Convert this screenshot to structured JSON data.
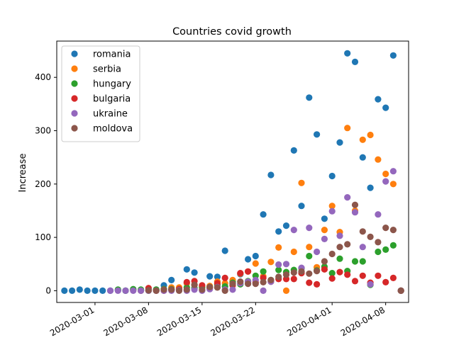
{
  "chart_data": {
    "type": "scatter",
    "title": "Countries covid growth",
    "xlabel": "",
    "ylabel": "Increase",
    "x_axis_type": "date",
    "xlim": [
      "2020-02-25",
      "2020-04-11"
    ],
    "ylim": [
      -22,
      468
    ],
    "x_ticks": [
      "2020-03-01",
      "2020-03-08",
      "2020-03-15",
      "2020-03-22",
      "2020-04-01",
      "2020-04-08"
    ],
    "y_ticks": [
      0,
      100,
      200,
      300,
      400
    ],
    "legend_position": "top-left",
    "grid": false,
    "series": [
      {
        "name": "romania",
        "color": "#1f77b4",
        "points": [
          [
            "2020-02-26",
            0
          ],
          [
            "2020-02-27",
            0
          ],
          [
            "2020-02-28",
            2
          ],
          [
            "2020-02-29",
            0
          ],
          [
            "2020-03-01",
            0
          ],
          [
            "2020-03-02",
            0
          ],
          [
            "2020-03-03",
            0
          ],
          [
            "2020-03-04",
            1
          ],
          [
            "2020-03-05",
            0
          ],
          [
            "2020-03-06",
            2
          ],
          [
            "2020-03-07",
            0
          ],
          [
            "2020-03-08",
            2
          ],
          [
            "2020-03-09",
            2
          ],
          [
            "2020-03-10",
            10
          ],
          [
            "2020-03-11",
            20
          ],
          [
            "2020-03-12",
            4
          ],
          [
            "2020-03-13",
            40
          ],
          [
            "2020-03-14",
            34
          ],
          [
            "2020-03-15",
            8
          ],
          [
            "2020-03-16",
            27
          ],
          [
            "2020-03-17",
            26
          ],
          [
            "2020-03-18",
            75
          ],
          [
            "2020-03-19",
            17
          ],
          [
            "2020-03-20",
            31
          ],
          [
            "2020-03-21",
            59
          ],
          [
            "2020-03-22",
            65
          ],
          [
            "2020-03-23",
            143
          ],
          [
            "2020-03-24",
            217
          ],
          [
            "2020-03-25",
            111
          ],
          [
            "2020-03-26",
            122
          ],
          [
            "2020-03-27",
            263
          ],
          [
            "2020-03-28",
            159
          ],
          [
            "2020-03-29",
            362
          ],
          [
            "2020-03-30",
            293
          ],
          [
            "2020-03-31",
            135
          ],
          [
            "2020-04-01",
            215
          ],
          [
            "2020-04-02",
            278
          ],
          [
            "2020-04-03",
            445
          ],
          [
            "2020-04-04",
            429
          ],
          [
            "2020-04-05",
            250
          ],
          [
            "2020-04-06",
            193
          ],
          [
            "2020-04-07",
            359
          ],
          [
            "2020-04-08",
            343
          ],
          [
            "2020-04-09",
            441
          ],
          [
            "2020-04-10",
            0
          ]
        ]
      },
      {
        "name": "serbia",
        "color": "#ff7f0e",
        "points": [
          [
            "2020-03-06",
            1
          ],
          [
            "2020-03-07",
            0
          ],
          [
            "2020-03-08",
            0
          ],
          [
            "2020-03-09",
            1
          ],
          [
            "2020-03-10",
            3
          ],
          [
            "2020-03-11",
            6
          ],
          [
            "2020-03-12",
            6
          ],
          [
            "2020-03-13",
            14
          ],
          [
            "2020-03-14",
            11
          ],
          [
            "2020-03-15",
            7
          ],
          [
            "2020-03-16",
            9
          ],
          [
            "2020-03-17",
            17
          ],
          [
            "2020-03-18",
            14
          ],
          [
            "2020-03-19",
            20
          ],
          [
            "2020-03-20",
            32
          ],
          [
            "2020-03-21",
            36
          ],
          [
            "2020-03-22",
            51
          ],
          [
            "2020-03-23",
            27
          ],
          [
            "2020-03-24",
            54
          ],
          [
            "2020-03-25",
            81
          ],
          [
            "2020-03-26",
            0
          ],
          [
            "2020-03-27",
            73
          ],
          [
            "2020-03-28",
            202
          ],
          [
            "2020-03-29",
            82
          ],
          [
            "2020-03-30",
            44
          ],
          [
            "2020-03-31",
            114
          ],
          [
            "2020-04-01",
            159
          ],
          [
            "2020-04-02",
            110
          ],
          [
            "2020-04-03",
            305
          ],
          [
            "2020-04-04",
            150
          ],
          [
            "2020-04-05",
            283
          ],
          [
            "2020-04-06",
            292
          ],
          [
            "2020-04-07",
            246
          ],
          [
            "2020-04-08",
            219
          ],
          [
            "2020-04-09",
            200
          ],
          [
            "2020-04-10",
            0
          ]
        ]
      },
      {
        "name": "hungary",
        "color": "#2ca02c",
        "points": [
          [
            "2020-03-04",
            2
          ],
          [
            "2020-03-05",
            0
          ],
          [
            "2020-03-06",
            3
          ],
          [
            "2020-03-07",
            2
          ],
          [
            "2020-03-08",
            0
          ],
          [
            "2020-03-09",
            2
          ],
          [
            "2020-03-10",
            3
          ],
          [
            "2020-03-11",
            3
          ],
          [
            "2020-03-12",
            3
          ],
          [
            "2020-03-13",
            6
          ],
          [
            "2020-03-14",
            5
          ],
          [
            "2020-03-15",
            6
          ],
          [
            "2020-03-16",
            7
          ],
          [
            "2020-03-17",
            11
          ],
          [
            "2020-03-18",
            8
          ],
          [
            "2020-03-19",
            15
          ],
          [
            "2020-03-20",
            12
          ],
          [
            "2020-03-21",
            18
          ],
          [
            "2020-03-22",
            28
          ],
          [
            "2020-03-23",
            36
          ],
          [
            "2020-03-24",
            20
          ],
          [
            "2020-03-25",
            39
          ],
          [
            "2020-03-26",
            35
          ],
          [
            "2020-03-27",
            39
          ],
          [
            "2020-03-28",
            42
          ],
          [
            "2020-03-29",
            65
          ],
          [
            "2020-03-30",
            38
          ],
          [
            "2020-03-31",
            45
          ],
          [
            "2020-04-01",
            33
          ],
          [
            "2020-04-02",
            60
          ],
          [
            "2020-04-03",
            37
          ],
          [
            "2020-04-04",
            55
          ],
          [
            "2020-04-05",
            55
          ],
          [
            "2020-04-06",
            11
          ],
          [
            "2020-04-07",
            73
          ],
          [
            "2020-04-08",
            77
          ],
          [
            "2020-04-09",
            85
          ],
          [
            "2020-04-10",
            0
          ]
        ]
      },
      {
        "name": "bulgaria",
        "color": "#d62728",
        "points": [
          [
            "2020-03-08",
            5
          ],
          [
            "2020-03-09",
            0
          ],
          [
            "2020-03-10",
            0
          ],
          [
            "2020-03-11",
            2
          ],
          [
            "2020-03-12",
            3
          ],
          [
            "2020-03-13",
            16
          ],
          [
            "2020-03-14",
            18
          ],
          [
            "2020-03-15",
            10
          ],
          [
            "2020-03-16",
            5
          ],
          [
            "2020-03-17",
            14
          ],
          [
            "2020-03-18",
            24
          ],
          [
            "2020-03-19",
            10
          ],
          [
            "2020-03-20",
            33
          ],
          [
            "2020-03-21",
            36
          ],
          [
            "2020-03-22",
            16
          ],
          [
            "2020-03-23",
            24
          ],
          [
            "2020-03-24",
            17
          ],
          [
            "2020-03-25",
            22
          ],
          [
            "2020-03-26",
            22
          ],
          [
            "2020-03-27",
            22
          ],
          [
            "2020-03-28",
            33
          ],
          [
            "2020-03-29",
            15
          ],
          [
            "2020-03-30",
            12
          ],
          [
            "2020-03-31",
            40
          ],
          [
            "2020-04-01",
            23
          ],
          [
            "2020-04-02",
            35
          ],
          [
            "2020-04-03",
            30
          ],
          [
            "2020-04-04",
            18
          ],
          [
            "2020-04-05",
            28
          ],
          [
            "2020-04-06",
            15
          ],
          [
            "2020-04-07",
            28
          ],
          [
            "2020-04-08",
            16
          ],
          [
            "2020-04-09",
            24
          ],
          [
            "2020-04-10",
            0
          ]
        ]
      },
      {
        "name": "ukraine",
        "color": "#9467bd",
        "points": [
          [
            "2020-03-03",
            0
          ],
          [
            "2020-03-04",
            0
          ],
          [
            "2020-03-05",
            0
          ],
          [
            "2020-03-06",
            0
          ],
          [
            "2020-03-07",
            0
          ],
          [
            "2020-03-08",
            0
          ],
          [
            "2020-03-09",
            0
          ],
          [
            "2020-03-10",
            0
          ],
          [
            "2020-03-11",
            0
          ],
          [
            "2020-03-12",
            1
          ],
          [
            "2020-03-13",
            0
          ],
          [
            "2020-03-14",
            2
          ],
          [
            "2020-03-15",
            0
          ],
          [
            "2020-03-16",
            3
          ],
          [
            "2020-03-17",
            7
          ],
          [
            "2020-03-18",
            2
          ],
          [
            "2020-03-19",
            2
          ],
          [
            "2020-03-20",
            14
          ],
          [
            "2020-03-21",
            17
          ],
          [
            "2020-03-22",
            20
          ],
          [
            "2020-03-23",
            0
          ],
          [
            "2020-03-24",
            17
          ],
          [
            "2020-03-25",
            49
          ],
          [
            "2020-03-26",
            50
          ],
          [
            "2020-03-27",
            114
          ],
          [
            "2020-03-28",
            43
          ],
          [
            "2020-03-29",
            118
          ],
          [
            "2020-03-30",
            73
          ],
          [
            "2020-03-31",
            97
          ],
          [
            "2020-04-01",
            149
          ],
          [
            "2020-04-02",
            103
          ],
          [
            "2020-04-03",
            175
          ],
          [
            "2020-04-04",
            147
          ],
          [
            "2020-04-05",
            82
          ],
          [
            "2020-04-06",
            12
          ],
          [
            "2020-04-07",
            143
          ],
          [
            "2020-04-08",
            205
          ],
          [
            "2020-04-09",
            224
          ],
          [
            "2020-04-10",
            0
          ]
        ]
      },
      {
        "name": "moldova",
        "color": "#8c564b",
        "points": [
          [
            "2020-03-08",
            1
          ],
          [
            "2020-03-09",
            0
          ],
          [
            "2020-03-10",
            2
          ],
          [
            "2020-03-11",
            2
          ],
          [
            "2020-03-12",
            0
          ],
          [
            "2020-03-13",
            2
          ],
          [
            "2020-03-14",
            11
          ],
          [
            "2020-03-15",
            2
          ],
          [
            "2020-03-16",
            7
          ],
          [
            "2020-03-17",
            6
          ],
          [
            "2020-03-18",
            0
          ],
          [
            "2020-03-19",
            13
          ],
          [
            "2020-03-20",
            17
          ],
          [
            "2020-03-21",
            13
          ],
          [
            "2020-03-22",
            13
          ],
          [
            "2020-03-23",
            16
          ],
          [
            "2020-03-24",
            20
          ],
          [
            "2020-03-25",
            26
          ],
          [
            "2020-03-26",
            30
          ],
          [
            "2020-03-27",
            34
          ],
          [
            "2020-03-28",
            36
          ],
          [
            "2020-03-29",
            32
          ],
          [
            "2020-03-30",
            37
          ],
          [
            "2020-03-31",
            55
          ],
          [
            "2020-04-01",
            69
          ],
          [
            "2020-04-02",
            82
          ],
          [
            "2020-04-03",
            87
          ],
          [
            "2020-04-04",
            161
          ],
          [
            "2020-04-05",
            111
          ],
          [
            "2020-04-06",
            101
          ],
          [
            "2020-04-07",
            91
          ],
          [
            "2020-04-08",
            118
          ],
          [
            "2020-04-09",
            114
          ],
          [
            "2020-04-10",
            0
          ]
        ]
      }
    ]
  }
}
